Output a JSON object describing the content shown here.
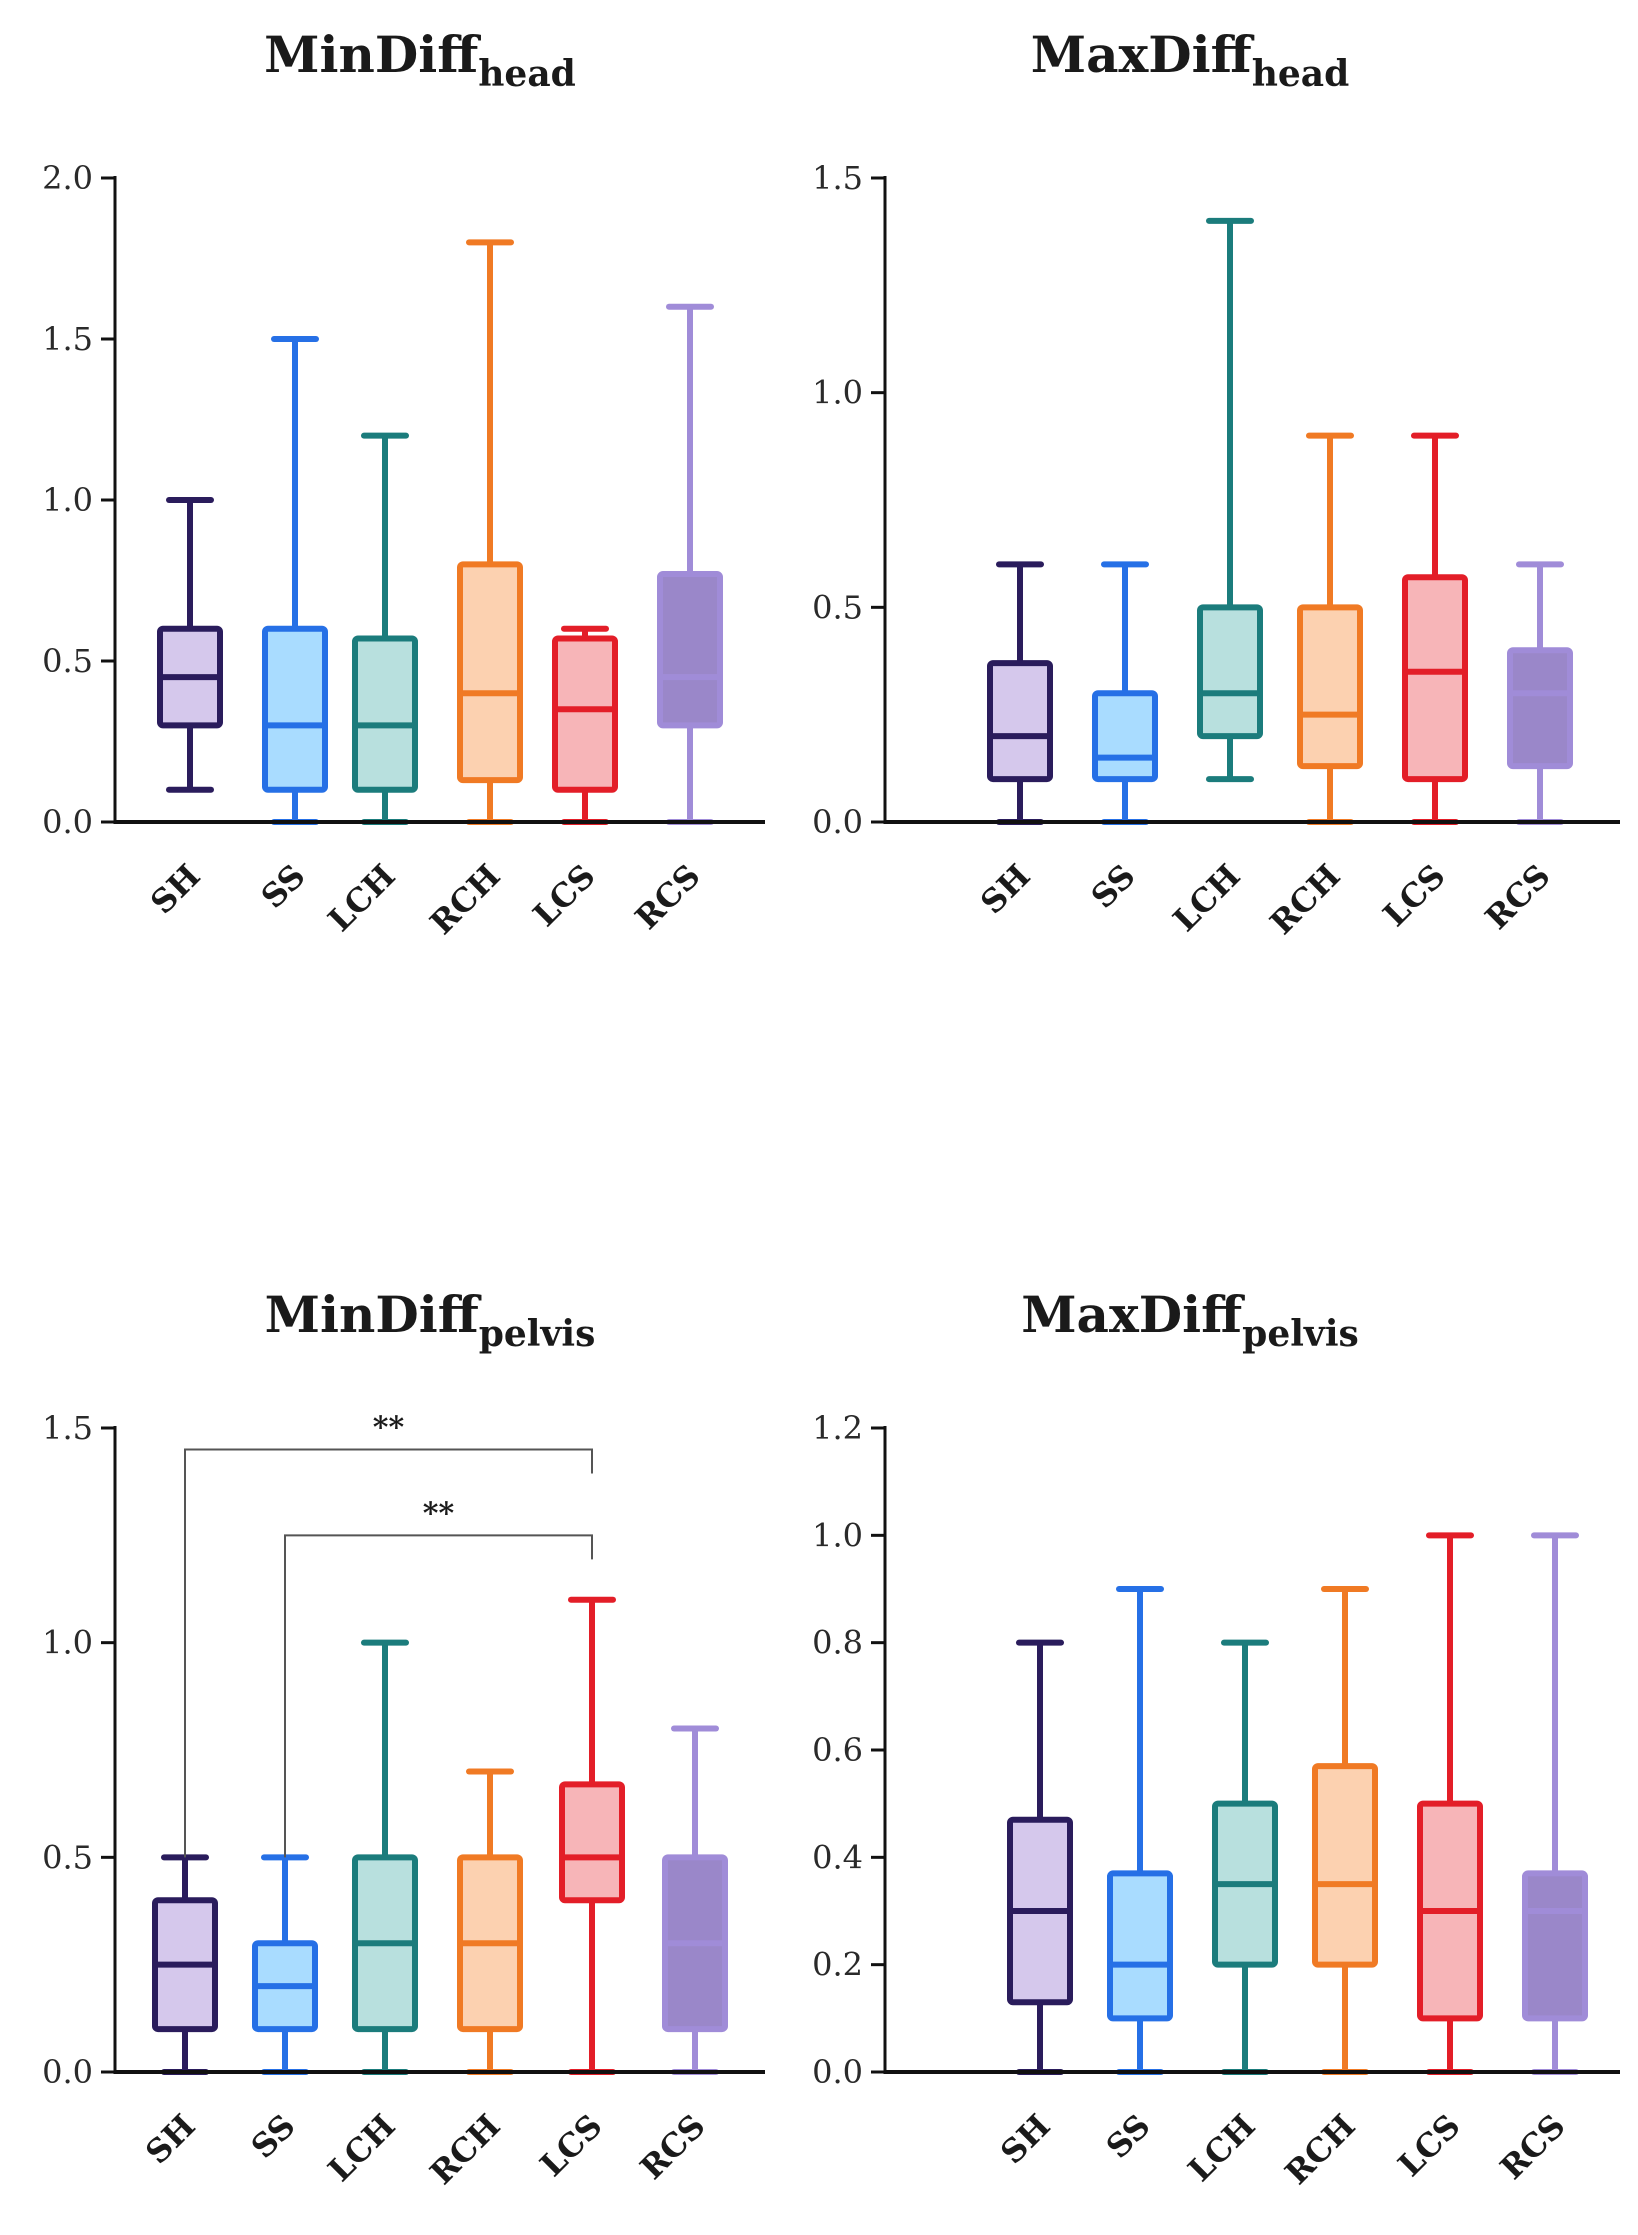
{
  "colors": {
    "SH": {
      "stroke": "#2a1c5c",
      "fill": "#d5c8ec"
    },
    "SS": {
      "stroke": "#2670e6",
      "fill": "#a9dcff"
    },
    "LCH": {
      "stroke": "#1b7c7c",
      "fill": "#b8e0de"
    },
    "RCH": {
      "stroke": "#f07a24",
      "fill": "#fcd1b0"
    },
    "LCS": {
      "stroke": "#e31e28",
      "fill": "#f7b5b8"
    },
    "RCS": {
      "stroke": "#a08cd8",
      "fill": "#9a87c9"
    }
  },
  "chart_data": [
    {
      "type": "boxplot",
      "title": "MinDiff",
      "title_sub": "head",
      "categories": [
        "SH",
        "SS",
        "LCH",
        "RCH",
        "LCS",
        "RCS"
      ],
      "ylim": [
        0,
        2.0
      ],
      "yticks": [
        0.0,
        0.5,
        1.0,
        1.5,
        2.0
      ],
      "tick_labels": [
        "0.0",
        "0.5",
        "1.0",
        "1.5",
        "2.0"
      ],
      "boxes": [
        {
          "min": 0.1,
          "q1": 0.3,
          "median": 0.45,
          "q3": 0.6,
          "max": 1.0
        },
        {
          "min": 0.0,
          "q1": 0.1,
          "median": 0.3,
          "q3": 0.6,
          "max": 1.5
        },
        {
          "min": 0.0,
          "q1": 0.1,
          "median": 0.3,
          "q3": 0.57,
          "max": 1.2
        },
        {
          "min": 0.0,
          "q1": 0.13,
          "median": 0.4,
          "q3": 0.8,
          "max": 1.8
        },
        {
          "min": 0.0,
          "q1": 0.1,
          "median": 0.35,
          "q3": 0.57,
          "max": 0.6
        },
        {
          "min": 0.0,
          "q1": 0.3,
          "median": 0.45,
          "q3": 0.77,
          "max": 1.6
        }
      ],
      "significance": []
    },
    {
      "type": "boxplot",
      "title": "MaxDiff",
      "title_sub": "head",
      "categories": [
        "SH",
        "SS",
        "LCH",
        "RCH",
        "LCS",
        "RCS"
      ],
      "ylim": [
        0,
        1.5
      ],
      "yticks": [
        0.0,
        0.5,
        1.0,
        1.5
      ],
      "tick_labels": [
        "0.0",
        "0.5",
        "1.0",
        "1.5"
      ],
      "boxes": [
        {
          "min": 0.0,
          "q1": 0.1,
          "median": 0.2,
          "q3": 0.37,
          "max": 0.6
        },
        {
          "min": 0.0,
          "q1": 0.1,
          "median": 0.15,
          "q3": 0.3,
          "max": 0.6
        },
        {
          "min": 0.1,
          "q1": 0.2,
          "median": 0.3,
          "q3": 0.5,
          "max": 1.4
        },
        {
          "min": 0.0,
          "q1": 0.13,
          "median": 0.25,
          "q3": 0.5,
          "max": 0.9
        },
        {
          "min": 0.0,
          "q1": 0.1,
          "median": 0.35,
          "q3": 0.57,
          "max": 0.9
        },
        {
          "min": 0.0,
          "q1": 0.13,
          "median": 0.3,
          "q3": 0.4,
          "max": 0.6
        }
      ],
      "significance": []
    },
    {
      "type": "boxplot",
      "title": "MinDiff",
      "title_sub": "pelvis",
      "categories": [
        "SH",
        "SS",
        "LCH",
        "RCH",
        "LCS",
        "RCS"
      ],
      "ylim": [
        0,
        1.5
      ],
      "yticks": [
        0.0,
        0.5,
        1.0,
        1.5
      ],
      "tick_labels": [
        "0.0",
        "0.5",
        "1.0",
        "1.5"
      ],
      "boxes": [
        {
          "min": 0.0,
          "q1": 0.1,
          "median": 0.25,
          "q3": 0.4,
          "max": 0.5
        },
        {
          "min": 0.0,
          "q1": 0.1,
          "median": 0.2,
          "q3": 0.3,
          "max": 0.5
        },
        {
          "min": 0.0,
          "q1": 0.1,
          "median": 0.3,
          "q3": 0.5,
          "max": 1.0
        },
        {
          "min": 0.0,
          "q1": 0.1,
          "median": 0.3,
          "q3": 0.5,
          "max": 0.7
        },
        {
          "min": 0.0,
          "q1": 0.4,
          "median": 0.5,
          "q3": 0.67,
          "max": 1.1
        },
        {
          "min": 0.0,
          "q1": 0.1,
          "median": 0.3,
          "q3": 0.5,
          "max": 0.8
        }
      ],
      "significance": [
        {
          "from": "SH",
          "to": "LCS",
          "label": "**",
          "y": 1.45,
          "y_left_end": 0.5
        },
        {
          "from": "SS",
          "to": "LCS",
          "label": "**",
          "y": 1.25,
          "y_left_end": 0.5
        }
      ]
    },
    {
      "type": "boxplot",
      "title": "MaxDiff",
      "title_sub": "pelvis",
      "categories": [
        "SH",
        "SS",
        "LCH",
        "RCH",
        "LCS",
        "RCS"
      ],
      "ylim": [
        0,
        1.2
      ],
      "yticks": [
        0.0,
        0.2,
        0.4,
        0.6,
        0.8,
        1.0,
        1.2
      ],
      "tick_labels": [
        "0.0",
        "0.2",
        "0.4",
        "0.6",
        "0.8",
        "1.0",
        "1.2"
      ],
      "boxes": [
        {
          "min": 0.0,
          "q1": 0.13,
          "median": 0.3,
          "q3": 0.47,
          "max": 0.8
        },
        {
          "min": 0.0,
          "q1": 0.1,
          "median": 0.2,
          "q3": 0.37,
          "max": 0.9
        },
        {
          "min": 0.0,
          "q1": 0.2,
          "median": 0.35,
          "q3": 0.5,
          "max": 0.8
        },
        {
          "min": 0.0,
          "q1": 0.2,
          "median": 0.35,
          "q3": 0.57,
          "max": 0.9
        },
        {
          "min": 0.0,
          "q1": 0.1,
          "median": 0.3,
          "q3": 0.5,
          "max": 1.0
        },
        {
          "min": 0.0,
          "q1": 0.1,
          "median": 0.3,
          "q3": 0.37,
          "max": 1.0
        }
      ],
      "significance": []
    }
  ]
}
